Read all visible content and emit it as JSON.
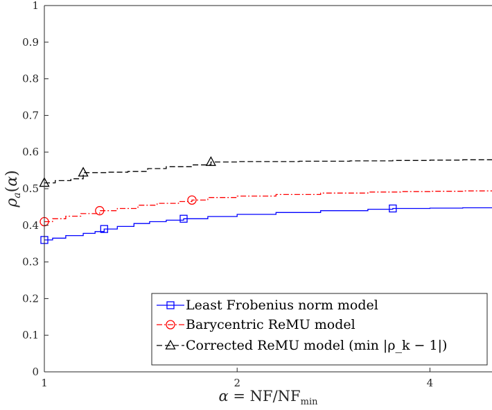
{
  "chart_data": {
    "type": "line",
    "title": "",
    "xlabel": "α = NF/NF_min",
    "ylabel": "ρ_a(α)",
    "xscale": "log2",
    "xlim": [
      1,
      5
    ],
    "ylim": [
      0,
      1
    ],
    "xticks": [
      1,
      2,
      4
    ],
    "yticks": [
      0,
      0.1,
      0.2,
      0.3,
      0.4,
      0.5,
      0.6,
      0.7,
      0.8,
      0.9,
      1
    ],
    "grid": false,
    "legend_position": "bottom-right",
    "series": [
      {
        "name": "Least Frobenius norm model",
        "color": "#0000ff",
        "line_style": "solid",
        "marker": "square",
        "x": [
          1,
          1.03,
          1.08,
          1.15,
          1.2,
          1.24,
          1.3,
          1.38,
          1.46,
          1.55,
          1.65,
          1.8,
          2.0,
          2.3,
          2.7,
          3.2,
          3.5,
          4.0,
          4.5,
          5.0
        ],
        "y": [
          0.36,
          0.365,
          0.372,
          0.378,
          0.383,
          0.39,
          0.397,
          0.405,
          0.41,
          0.414,
          0.418,
          0.424,
          0.43,
          0.435,
          0.44,
          0.444,
          0.446,
          0.447,
          0.448,
          0.448
        ],
        "marker_x": [
          1,
          1.24,
          1.65,
          3.5
        ],
        "marker_y": [
          0.36,
          0.39,
          0.418,
          0.446
        ]
      },
      {
        "name": "Barycentric ReMU model",
        "color": "#ff0000",
        "line_style": "dash-dot",
        "marker": "circle",
        "x": [
          1,
          1.03,
          1.08,
          1.14,
          1.22,
          1.3,
          1.4,
          1.5,
          1.62,
          1.7,
          1.8,
          2.0,
          2.3,
          2.7,
          3.2,
          3.6,
          4.0,
          4.5,
          5.0
        ],
        "y": [
          0.41,
          0.418,
          0.425,
          0.432,
          0.44,
          0.446,
          0.455,
          0.46,
          0.465,
          0.469,
          0.476,
          0.48,
          0.484,
          0.488,
          0.491,
          0.492,
          0.493,
          0.494,
          0.494
        ],
        "marker_x": [
          1,
          1.22,
          1.7
        ],
        "marker_y": [
          0.41,
          0.44,
          0.469
        ]
      },
      {
        "name": "Corrected ReMU model (min |ρ_k − 1|)",
        "color": "#000000",
        "line_style": "dashed",
        "marker": "triangle",
        "x": [
          1,
          1.04,
          1.1,
          1.15,
          1.25,
          1.35,
          1.45,
          1.55,
          1.7,
          1.82,
          2.0,
          2.5,
          3.0,
          3.5,
          4.0,
          4.5,
          5.0
        ],
        "y": [
          0.516,
          0.522,
          0.527,
          0.544,
          0.545,
          0.547,
          0.555,
          0.56,
          0.565,
          0.573,
          0.574,
          0.575,
          0.576,
          0.577,
          0.578,
          0.579,
          0.58
        ],
        "marker_x": [
          1,
          1.15,
          1.82
        ],
        "marker_y": [
          0.516,
          0.544,
          0.573
        ]
      }
    ],
    "xtick_labels": [
      "1",
      "2",
      "4"
    ],
    "ytick_labels": [
      "0",
      "0.1",
      "0.2",
      "0.3",
      "0.4",
      "0.5",
      "0.6",
      "0.7",
      "0.8",
      "0.9",
      "1"
    ]
  }
}
